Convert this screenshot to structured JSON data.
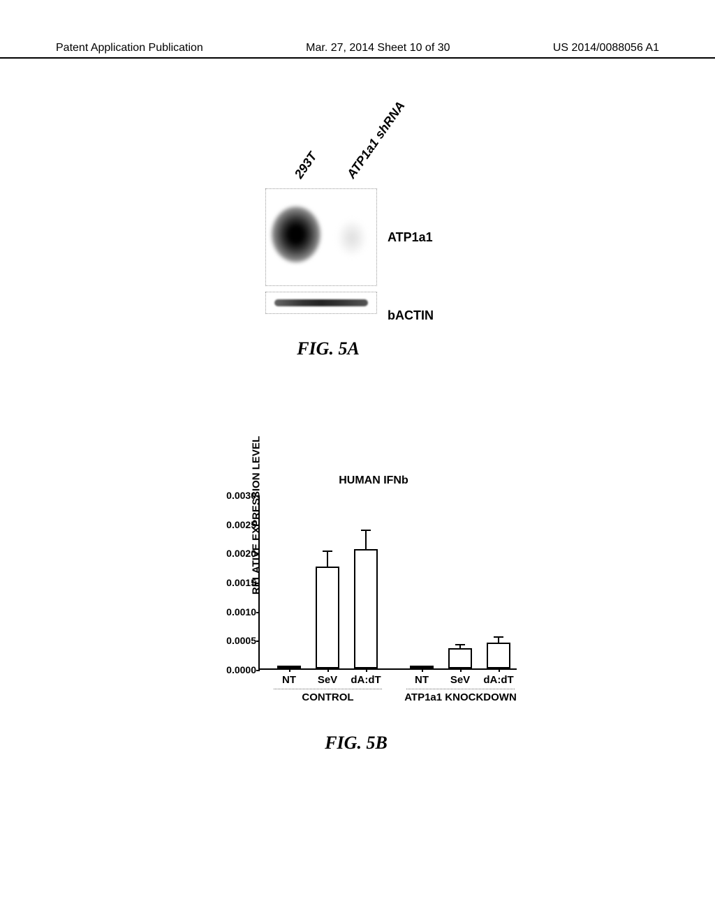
{
  "header": {
    "left": "Patent Application Publication",
    "center": "Mar. 27, 2014  Sheet 10 of 30",
    "right": "US 2014/0088056 A1"
  },
  "fig5a": {
    "lane1": "293T",
    "lane2": "ATP1a1 shRNA",
    "band1_label": "ATP1a1",
    "band2_label": "bACTIN",
    "caption": "FIG.  5A"
  },
  "fig5b": {
    "title": "HUMAN IFNb",
    "ylabel": "RELATIVE EXPRESSION LEVEL",
    "yticks": [
      "0.0000",
      "0.0005",
      "0.0010",
      "0.0015",
      "0.0020",
      "0.0025",
      "0.0030"
    ],
    "ymax": 0.003,
    "categories": [
      "NT",
      "SeV",
      "dA:dT",
      "NT",
      "SeV",
      "dA:dT"
    ],
    "values": [
      2e-05,
      0.00175,
      0.00205,
      2e-05,
      0.00035,
      0.00045
    ],
    "errors": [
      0,
      0.00025,
      0.00032,
      0,
      5e-05,
      8e-05
    ],
    "groups": [
      "CONTROL",
      "ATP1a1 KNOCKDOWN"
    ],
    "bar_fill": "#ffffff",
    "bar_stroke": "#000000",
    "caption": "FIG.  5B"
  }
}
